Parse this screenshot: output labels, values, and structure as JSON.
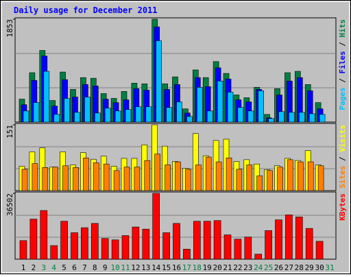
{
  "chart_data": [
    {
      "type": "bar",
      "title": "Daily usage for December 2011",
      "legend_separator": " / ",
      "grid": true,
      "ylim": [
        0,
        1853
      ],
      "yticks": [
        1853
      ],
      "series": [
        {
          "name": "Hits",
          "color": "#008040",
          "values": [
            413,
            889,
            1290,
            388,
            901,
            588,
            801,
            789,
            513,
            426,
            551,
            701,
            689,
            1853,
            689,
            814,
            238,
            939,
            801,
            1089,
            876,
            488,
            438,
            626,
            138,
            601,
            889,
            914,
            676,
            351,
            null
          ]
        },
        {
          "name": "Files",
          "color": "#0000ff",
          "values": [
            313,
            751,
            1189,
            288,
            764,
            451,
            676,
            651,
            413,
            351,
            401,
            601,
            576,
            1715,
            588,
            676,
            163,
            801,
            638,
            977,
            776,
            401,
            363,
            588,
            75,
            488,
            739,
            801,
            564,
            238,
            null
          ]
        },
        {
          "name": "Pages",
          "color": "#00c0ff",
          "values": [
            200,
            351,
            914,
            138,
            426,
            175,
            451,
            163,
            250,
            200,
            225,
            275,
            275,
            1465,
            263,
            363,
            100,
            626,
            200,
            739,
            538,
            263,
            200,
            564,
            63,
            188,
            175,
            175,
            150,
            138,
            null
          ]
        }
      ]
    },
    {
      "type": "bar",
      "legend_separator": " / ",
      "grid": true,
      "ylim": [
        0,
        151
      ],
      "yticks": [
        151
      ],
      "series": [
        {
          "name": "Visits",
          "color": "#ffff00",
          "values": [
            56,
            89,
            98,
            54,
            89,
            59,
            87,
            72,
            79,
            56,
            74,
            74,
            105,
            151,
            102,
            67,
            51,
            131,
            80,
            115,
            118,
            67,
            71,
            61,
            48,
            57,
            74,
            69,
            92,
            59,
            null
          ]
        },
        {
          "name": "Sites",
          "color": "#ff8000",
          "values": [
            49,
            62,
            53,
            54,
            57,
            53,
            75,
            64,
            61,
            46,
            54,
            54,
            69,
            84,
            59,
            66,
            49,
            59,
            77,
            66,
            75,
            49,
            59,
            34,
            46,
            54,
            71,
            66,
            66,
            57,
            null
          ]
        }
      ]
    },
    {
      "type": "bar",
      "grid": true,
      "ylim": [
        0,
        36502
      ],
      "yticks": [
        36502
      ],
      "categories": [
        "1",
        "2",
        "3",
        "4",
        "5",
        "6",
        "7",
        "8",
        "9",
        "10",
        "11",
        "12",
        "13",
        "14",
        "15",
        "16",
        "17",
        "18",
        "19",
        "20",
        "21",
        "22",
        "23",
        "24",
        "25",
        "26",
        "27",
        "28",
        "29",
        "30",
        "31"
      ],
      "category_colors": [
        "#000000",
        "#000000",
        "#008040",
        "#008040",
        "#000000",
        "#000000",
        "#000000",
        "#000000",
        "#000000",
        "#008040",
        "#008040",
        "#000000",
        "#000000",
        "#000000",
        "#000000",
        "#000000",
        "#008040",
        "#008040",
        "#000000",
        "#000000",
        "#000000",
        "#000000",
        "#000000",
        "#008040",
        "#008040",
        "#000000",
        "#000000",
        "#000000",
        "#000000",
        "#000000",
        "#008040"
      ],
      "series": [
        {
          "name": "KBytes",
          "color": "#ff0000",
          "values": [
            10316,
            22218,
            26979,
            7538,
            21028,
            14680,
            17457,
            19838,
            11506,
            10712,
            13093,
            17854,
            16664,
            36502,
            14680,
            19838,
            5555,
            21028,
            21028,
            21425,
            13490,
            11109,
            12299,
            2777,
            15870,
            21822,
            24598,
            23409,
            17060,
            9919,
            null
          ]
        }
      ]
    }
  ]
}
